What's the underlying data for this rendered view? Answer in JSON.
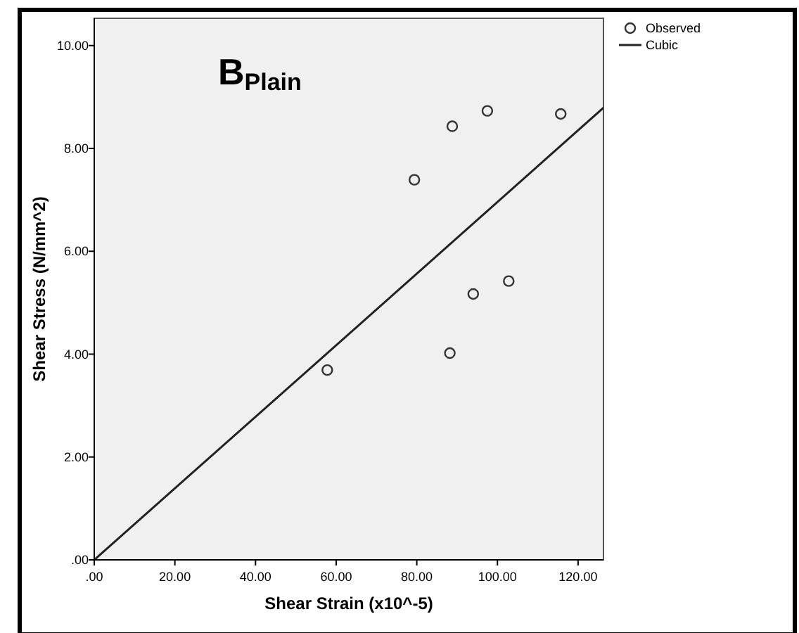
{
  "chart_data": {
    "type": "scatter",
    "xlabel": "Shear Strain (x10^-5)",
    "ylabel": "Shear Stress (N/mm^2)",
    "annotations": [
      "B$_{Plain}$"
    ],
    "series": [
      {
        "name": "Observed",
        "color": "#333333",
        "marker": "circle",
        "x": [
          57.8,
          88.2,
          79.4,
          88.8,
          97.5,
          115.7,
          94.0,
          102.8
        ],
        "values": [
          3.69,
          4.02,
          7.39,
          8.43,
          8.73,
          8.67,
          5.17,
          5.42
        ]
      },
      {
        "name": "Cubic",
        "type": "line",
        "color": "#222222",
        "marker": "none",
        "x": [
          0,
          63,
          126.3
        ],
        "values": [
          0,
          4.38,
          8.79
        ]
      }
    ],
    "xlim": [
      0,
      126.3
    ],
    "ylim": [
      0,
      10.53
    ],
    "xticks": [
      {
        "value": 0,
        "label": ".00"
      },
      {
        "value": 20,
        "label": "20.00"
      },
      {
        "value": 40,
        "label": "40.00"
      },
      {
        "value": 60,
        "label": "60.00"
      },
      {
        "value": 80,
        "label": "80.00"
      },
      {
        "value": 100,
        "label": "100.00"
      },
      {
        "value": 120,
        "label": "120.00"
      }
    ],
    "yticks": [
      {
        "value": 0,
        "label": ".00"
      },
      {
        "value": 2,
        "label": "2.00"
      },
      {
        "value": 4,
        "label": "4.00"
      },
      {
        "value": 6,
        "label": "6.00"
      },
      {
        "value": 8,
        "label": "8.00"
      },
      {
        "value": 10,
        "label": "10.00"
      }
    ],
    "legend": "top right",
    "grid": false
  }
}
